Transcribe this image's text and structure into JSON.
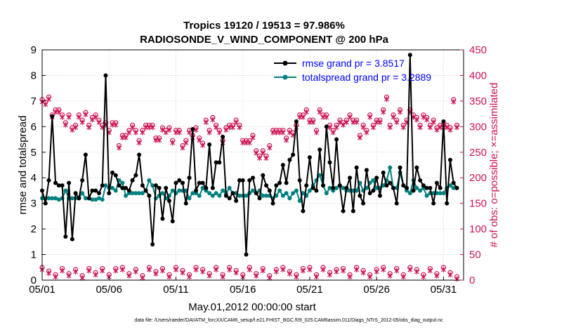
{
  "chart_data": {
    "type": "line",
    "title_line1": "Tropics 19120 / 19513 = 97.986%",
    "title_line2": "RADIOSONDE_V_WIND_COMPONENT @ 200 hPa",
    "xlabel": "May.01,2012 00:00:00 start",
    "ylabel_left": "rmse and totalspread",
    "ylabel_right": "# of obs: o=possible; ×=assimilated",
    "xlim": [
      0,
      31.5
    ],
    "ylim_left": [
      0,
      9
    ],
    "ylim_right": [
      0,
      450
    ],
    "x_ticks": [
      0,
      5,
      10,
      15,
      20,
      25,
      30
    ],
    "x_tick_labels": [
      "05/01",
      "05/06",
      "05/11",
      "05/16",
      "05/21",
      "05/26",
      "05/31"
    ],
    "y_left_ticks": [
      "0",
      "1",
      "2",
      "3",
      "4",
      "5",
      "6",
      "7",
      "8",
      "9"
    ],
    "y_right_ticks": [
      "0",
      "50",
      "100",
      "150",
      "200",
      "250",
      "300",
      "350",
      "400",
      "450"
    ],
    "colors": {
      "rmse": "#000000",
      "spread": "#008080",
      "obs": "#cc1155",
      "text_right": "#cc1155"
    },
    "legend": {
      "rmse_label": "rmse grand pr = 3.8517",
      "spread_label": "totalspread grand pr = 3.2889"
    },
    "footnote": "data file: /Users/raeder/DAI/ATM_forcXX/CAM6_setup/f.e21.FHIST_BGC.f09_025.CAM6assim.011/Diags_NTrS_2012-05/obs_diag_output.nc",
    "series": [
      {
        "name": "rmse",
        "x": [
          0.0,
          0.25,
          0.5,
          0.75,
          1.0,
          1.25,
          1.5,
          1.75,
          2.0,
          2.25,
          2.5,
          2.75,
          3.0,
          3.25,
          3.5,
          3.75,
          4.0,
          4.25,
          4.5,
          4.75,
          5.0,
          5.25,
          5.5,
          5.75,
          6.0,
          6.25,
          6.5,
          6.75,
          7.0,
          7.25,
          7.5,
          7.75,
          8.0,
          8.25,
          8.5,
          8.75,
          9.0,
          9.25,
          9.5,
          9.75,
          10.0,
          10.25,
          10.5,
          10.75,
          11.0,
          11.25,
          11.5,
          11.75,
          12.0,
          12.25,
          12.5,
          12.75,
          13.0,
          13.25,
          13.5,
          13.75,
          14.0,
          14.25,
          14.5,
          14.75,
          15.0,
          15.25,
          15.5,
          15.75,
          16.0,
          16.25,
          16.5,
          16.75,
          17.0,
          17.25,
          17.5,
          17.75,
          18.0,
          18.25,
          18.5,
          18.75,
          19.0,
          19.25,
          19.5,
          19.75,
          20.0,
          20.25,
          20.5,
          20.75,
          21.0,
          21.25,
          21.5,
          21.75,
          22.0,
          22.25,
          22.5,
          22.75,
          23.0,
          23.25,
          23.5,
          23.75,
          24.0,
          24.25,
          24.5,
          24.75,
          25.0,
          25.25,
          25.5,
          25.75,
          26.0,
          26.25,
          26.5,
          26.75,
          27.0,
          27.25,
          27.5,
          27.75,
          28.0,
          28.25,
          28.5,
          28.75,
          29.0,
          29.25,
          29.5,
          29.75,
          30.0,
          30.25,
          30.5,
          30.75,
          31.0
        ],
        "y": [
          3.5,
          3.0,
          3.9,
          6.4,
          3.8,
          3.7,
          3.7,
          1.7,
          3.8,
          1.6,
          3.4,
          3.2,
          3.9,
          4.9,
          3.2,
          3.5,
          3.5,
          3.4,
          3.7,
          8.0,
          3.4,
          4.2,
          4.1,
          3.7,
          3.6,
          3.6,
          3.5,
          3.9,
          4.1,
          4.9,
          3.7,
          3.5,
          3.3,
          1.4,
          3.7,
          3.6,
          2.4,
          3.6,
          3.1,
          2.3,
          3.8,
          3.9,
          3.8,
          3.0,
          4.0,
          5.9,
          3.5,
          3.8,
          3.8,
          3.6,
          5.3,
          3.6,
          4.6,
          4.6,
          5.6,
          3.3,
          3.2,
          3.4,
          3.1,
          3.9,
          3.9,
          1.0,
          3.9,
          4.0,
          3.4,
          3.2,
          4.1,
          3.7,
          3.5,
          3.0,
          3.7,
          3.8,
          4.5,
          3.8,
          4.7,
          4.9,
          6.2,
          3.9,
          2.7,
          3.7,
          4.8,
          3.6,
          3.5,
          5.1,
          3.7,
          6.0,
          4.6,
          3.6,
          5.5,
          3.7,
          2.7,
          3.6,
          4.0,
          2.7,
          4.4,
          3.3,
          3.0,
          4.3,
          3.4,
          3.5,
          4.0,
          3.3,
          4.2,
          3.7,
          3.8,
          3.6,
          3.0,
          4.4,
          3.7,
          3.6,
          8.8,
          3.5,
          4.4,
          3.9,
          3.7,
          3.6,
          3.6,
          3.0,
          3.8,
          3.6,
          6.2,
          3.0,
          4.7,
          3.8,
          3.6
        ]
      },
      {
        "name": "totalspread",
        "x": [
          0.0,
          0.25,
          0.5,
          0.75,
          1.0,
          1.25,
          1.5,
          1.75,
          2.0,
          2.25,
          2.5,
          2.75,
          3.0,
          3.25,
          3.5,
          3.75,
          4.0,
          4.25,
          4.5,
          4.75,
          5.0,
          5.25,
          5.5,
          5.75,
          6.0,
          6.25,
          6.5,
          6.75,
          7.0,
          7.25,
          7.5,
          7.75,
          8.0,
          8.25,
          8.5,
          8.75,
          9.0,
          9.25,
          9.5,
          9.75,
          10.0,
          10.25,
          10.5,
          10.75,
          11.0,
          11.25,
          11.5,
          11.75,
          12.0,
          12.25,
          12.5,
          12.75,
          13.0,
          13.25,
          13.5,
          13.75,
          14.0,
          14.25,
          14.5,
          14.75,
          15.0,
          15.25,
          15.5,
          15.75,
          16.0,
          16.25,
          16.5,
          16.75,
          17.0,
          17.25,
          17.5,
          17.75,
          18.0,
          18.25,
          18.5,
          18.75,
          19.0,
          19.25,
          19.5,
          19.75,
          20.0,
          20.25,
          20.5,
          20.75,
          21.0,
          21.25,
          21.5,
          21.75,
          22.0,
          22.25,
          22.5,
          22.75,
          23.0,
          23.25,
          23.5,
          23.75,
          24.0,
          24.25,
          24.5,
          24.75,
          25.0,
          25.25,
          25.5,
          25.75,
          26.0,
          26.25,
          26.5,
          26.75,
          27.0,
          27.25,
          27.5,
          27.75,
          28.0,
          28.25,
          28.5,
          28.75,
          29.0,
          29.25,
          29.5,
          29.75,
          30.0,
          30.25,
          30.5,
          30.75,
          31.0
        ],
        "y": [
          3.2,
          3.2,
          3.2,
          3.2,
          3.2,
          3.15,
          3.2,
          3.5,
          3.2,
          3.2,
          3.2,
          3.2,
          3.4,
          3.2,
          3.2,
          3.15,
          3.15,
          3.2,
          3.15,
          3.7,
          3.6,
          3.6,
          3.5,
          3.9,
          3.8,
          3.3,
          3.4,
          3.4,
          3.4,
          3.4,
          3.4,
          3.5,
          3.9,
          3.7,
          3.2,
          3.3,
          3.4,
          3.2,
          3.3,
          3.5,
          3.4,
          3.5,
          3.5,
          3.5,
          3.2,
          3.4,
          3.4,
          3.3,
          3.6,
          3.5,
          3.4,
          3.3,
          3.4,
          3.3,
          3.5,
          3.4,
          3.6,
          3.4,
          3.4,
          3.3,
          3.3,
          3.3,
          3.4,
          3.5,
          3.4,
          3.5,
          3.3,
          3.3,
          3.3,
          3.2,
          3.3,
          3.5,
          3.3,
          3.4,
          3.2,
          3.4,
          3.5,
          3.1,
          3.4,
          3.3,
          3.5,
          3.7,
          3.9,
          4.1,
          3.7,
          3.4,
          3.6,
          3.5,
          3.6,
          3.7,
          3.6,
          3.5,
          3.5,
          3.5,
          3.5,
          3.8,
          3.5,
          3.6,
          3.8,
          3.9,
          3.6,
          3.6,
          3.7,
          3.9,
          4.4,
          3.6,
          3.6,
          4.2,
          3.7,
          3.5,
          3.4,
          3.9,
          3.6,
          3.5,
          3.6,
          3.3,
          3.4,
          3.4,
          3.4,
          3.4,
          3.4,
          3.6,
          3.7,
          3.6,
          3.6
        ]
      },
      {
        "name": "obs_possible_upper",
        "x": [
          0.0,
          0.25,
          0.5,
          0.75,
          1.0,
          1.25,
          1.5,
          1.75,
          2.0,
          2.25,
          2.5,
          2.75,
          3.0,
          3.25,
          3.5,
          3.75,
          4.0,
          4.25,
          4.5,
          4.75,
          5.0,
          5.25,
          5.5,
          5.75,
          6.0,
          6.25,
          6.5,
          6.75,
          7.0,
          7.25,
          7.5,
          7.75,
          8.0,
          8.25,
          8.5,
          8.75,
          9.0,
          9.25,
          9.5,
          9.75,
          10.0,
          10.25,
          10.5,
          10.75,
          11.0,
          11.25,
          11.5,
          11.75,
          12.0,
          12.25,
          12.5,
          12.75,
          13.0,
          13.25,
          13.5,
          13.75,
          14.0,
          14.25,
          14.5,
          14.75,
          15.0,
          15.25,
          15.5,
          15.75,
          16.0,
          16.25,
          16.5,
          16.75,
          17.0,
          17.25,
          17.5,
          17.75,
          18.0,
          18.25,
          18.5,
          18.75,
          19.0,
          19.25,
          19.5,
          19.75,
          20.0,
          20.25,
          20.5,
          20.75,
          21.0,
          21.25,
          21.5,
          21.75,
          22.0,
          22.25,
          22.5,
          22.75,
          23.0,
          23.25,
          23.5,
          23.75,
          24.0,
          24.25,
          24.5,
          24.75,
          25.0,
          25.25,
          25.5,
          25.75,
          26.0,
          26.25,
          26.5,
          26.75,
          27.0,
          27.25,
          27.5,
          27.75,
          28.0,
          28.25,
          28.5,
          28.75,
          29.0,
          29.25,
          29.5,
          29.75,
          30.0,
          30.25,
          30.5,
          30.75,
          31.0
        ],
        "y": [
          350,
          345,
          355,
          320,
          330,
          330,
          320,
          305,
          320,
          295,
          300,
          320,
          310,
          325,
          300,
          315,
          320,
          310,
          300,
          305,
          290,
          305,
          305,
          260,
          280,
          280,
          290,
          300,
          290,
          270,
          290,
          300,
          300,
          300,
          275,
          275,
          295,
          290,
          295,
          270,
          290,
          290,
          260,
          270,
          290,
          280,
          295,
          275,
          265,
          310,
          290,
          315,
          300,
          290,
          270,
          295,
          300,
          300,
          310,
          300,
          270,
          270,
          270,
          280,
          250,
          240,
          250,
          240,
          260,
          290,
          290,
          290,
          290,
          275,
          290,
          285,
          300,
          320,
          320,
          330,
          310,
          310,
          290,
          330,
          320,
          320,
          300,
          290,
          300,
          310,
          305,
          310,
          320,
          310,
          310,
          280,
          300,
          290,
          320,
          300,
          310,
          310,
          330,
          355,
          300,
          320,
          310,
          330,
          300,
          310,
          330,
          320,
          315,
          300,
          320,
          315,
          300,
          310,
          295,
          300,
          300,
          300,
          295,
          350,
          300
        ]
      },
      {
        "name": "obs_lower",
        "x": [
          0.0,
          0.5,
          1.0,
          1.5,
          2.0,
          2.5,
          3.0,
          3.5,
          4.0,
          4.5,
          5.0,
          5.5,
          6.0,
          6.5,
          7.0,
          7.5,
          8.0,
          8.5,
          9.0,
          9.5,
          10.0,
          10.5,
          11.0,
          11.5,
          12.0,
          12.5,
          13.0,
          13.5,
          14.0,
          14.5,
          15.0,
          15.5,
          16.0,
          16.5,
          17.0,
          17.5,
          18.0,
          18.5,
          19.0,
          19.5,
          20.0,
          20.5,
          21.0,
          21.5,
          22.0,
          22.5,
          23.0,
          23.5,
          24.0,
          24.5,
          25.0,
          25.5,
          26.0,
          26.5,
          27.0,
          27.5,
          28.0,
          28.5,
          29.0,
          29.5,
          30.0,
          30.5,
          31.0
        ],
        "y": [
          22,
          15,
          8,
          20,
          10,
          18,
          6,
          20,
          12,
          20,
          8,
          20,
          22,
          10,
          18,
          6,
          22,
          14,
          20,
          8,
          22,
          16,
          8,
          22,
          18,
          10,
          22,
          8,
          22,
          16,
          8,
          22,
          10,
          20,
          6,
          18,
          22,
          14,
          8,
          20,
          22,
          8,
          22,
          12,
          18,
          20,
          8,
          22,
          16,
          8,
          18,
          22,
          10,
          20,
          8,
          22,
          18,
          8,
          20,
          10,
          22,
          12,
          4
        ]
      }
    ]
  }
}
